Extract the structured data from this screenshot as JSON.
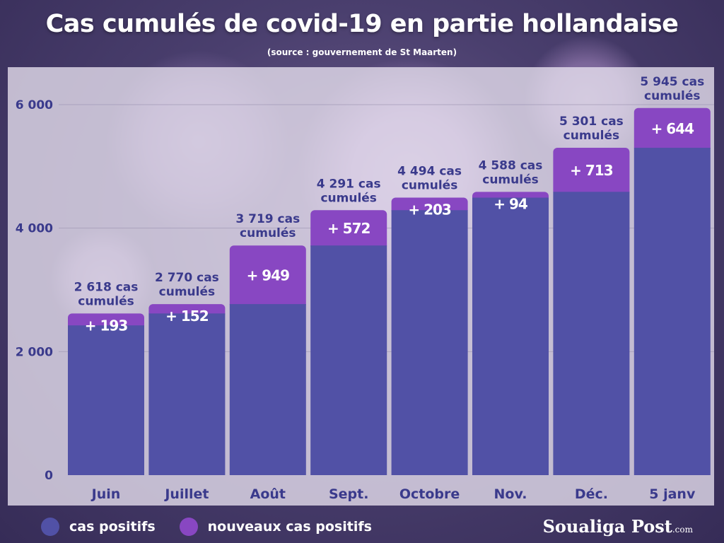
{
  "header": {
    "title": "Cas cumulés de covid-19 en partie hollandaise",
    "subtitle": "(source : gouvernement de St Maarten)"
  },
  "chart_data": {
    "type": "bar",
    "stacked": true,
    "categories": [
      "Juin",
      "Juillet",
      "Août",
      "Sept.",
      "Octobre",
      "Nov.",
      "Déc.",
      "5 janv"
    ],
    "series": [
      {
        "name": "cas positifs",
        "color": "#5151a6",
        "values": [
          2425,
          2618,
          2770,
          3719,
          4291,
          4494,
          4588,
          5301
        ]
      },
      {
        "name": "nouveaux cas positifs",
        "color": "#8847c2",
        "values": [
          193,
          152,
          949,
          572,
          203,
          94,
          713,
          644
        ]
      }
    ],
    "total_labels": [
      [
        "2 618 cas",
        "cumulés"
      ],
      [
        "2 770 cas",
        "cumulés"
      ],
      [
        "3  719 cas",
        "cumulés"
      ],
      [
        "4 291 cas",
        "cumulés"
      ],
      [
        "4 494 cas",
        "cumulés"
      ],
      [
        "4 588 cas",
        "cumulés"
      ],
      [
        "5 301 cas",
        "cumulés"
      ],
      [
        "5 945 cas",
        "cumulés"
      ]
    ],
    "increment_labels": [
      "+ 193",
      "+ 152",
      "+ 949",
      "+ 572",
      "+ 203",
      "+ 94",
      "+ 713",
      "+ 644"
    ],
    "y_ticks": [
      0,
      2000,
      4000,
      6000
    ],
    "y_tick_labels": [
      "0",
      "2 000",
      "4 000",
      "6 000"
    ],
    "ylim": [
      0,
      6000
    ],
    "grid": true,
    "legend_position": "bottom-left",
    "text_color": "#3a3a8c"
  },
  "legend": {
    "items": [
      {
        "label": "cas positifs",
        "color": "#5151a6"
      },
      {
        "label": "nouveaux cas positifs",
        "color": "#8847c2"
      }
    ]
  },
  "brand": {
    "name": "Soualiga Post",
    "suffix": ".com"
  }
}
